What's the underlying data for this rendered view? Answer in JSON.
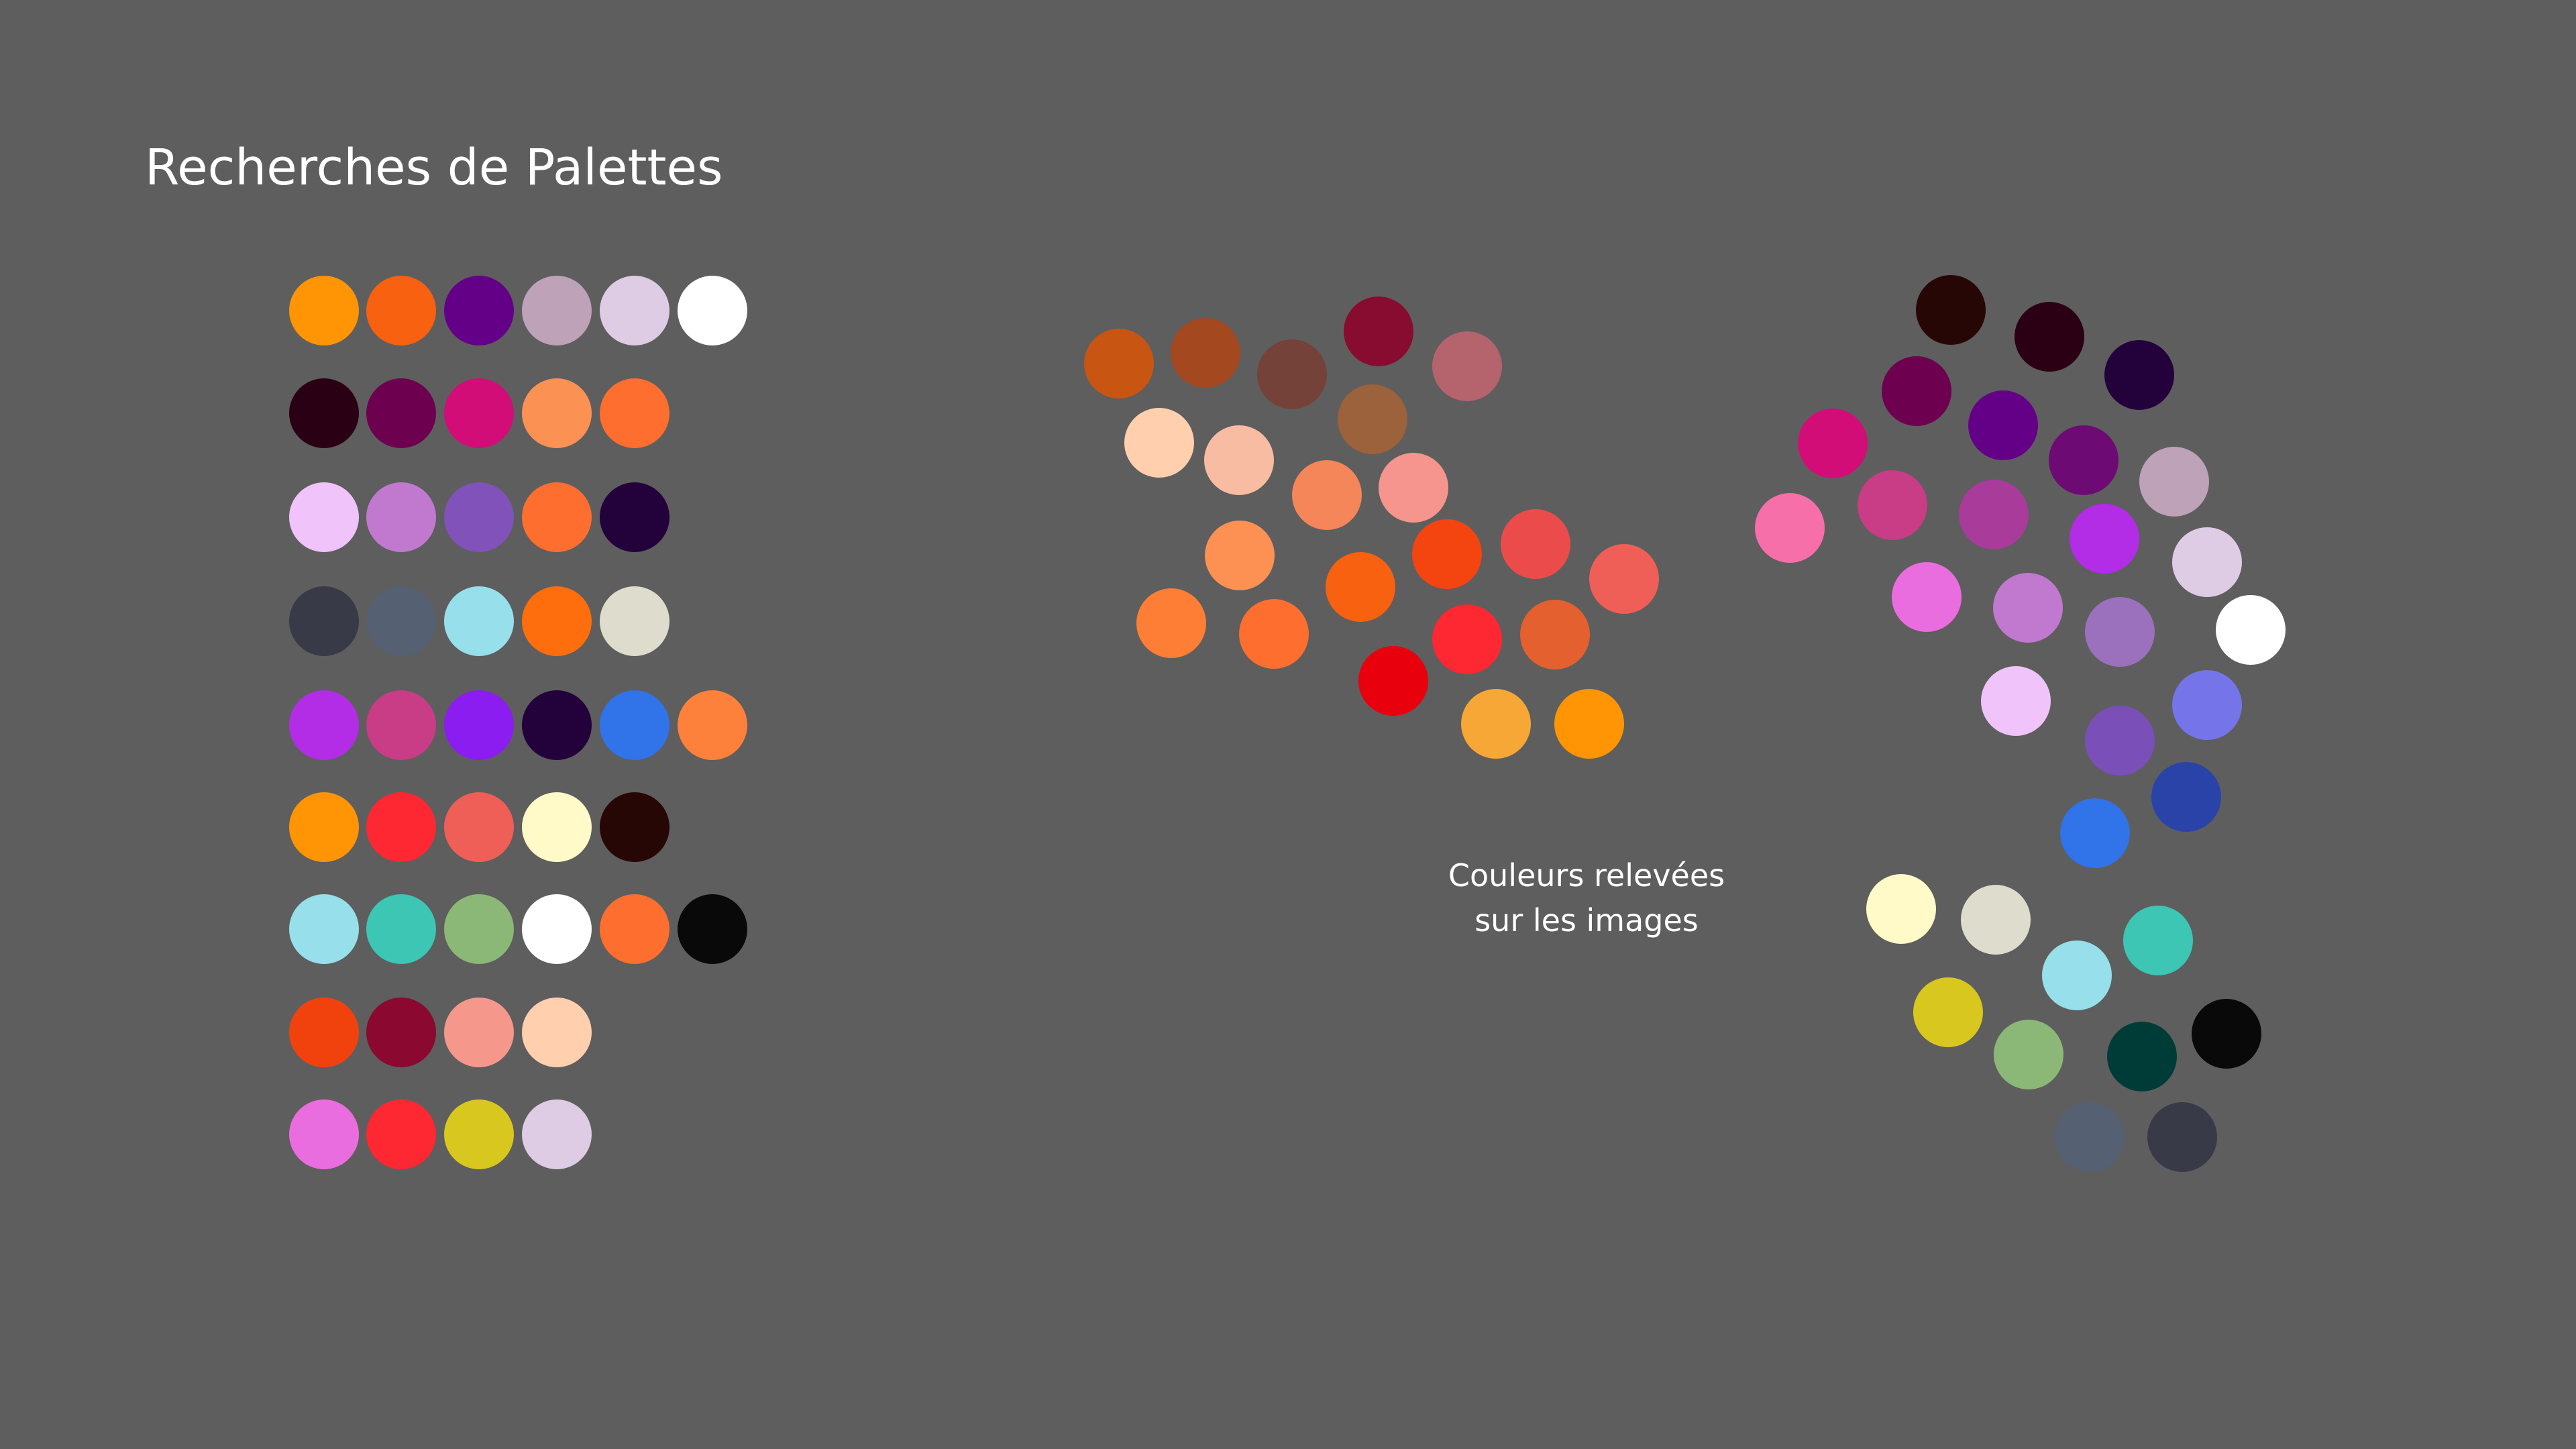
{
  "title": "Recherches de Palettes",
  "caption": {
    "line1": "Couleurs relevées",
    "line2": "sur les images"
  },
  "background_color": "#5e5e5e",
  "palettes": [
    [
      "#ff9505",
      "#f8610f",
      "#640088",
      "#bea2b8",
      "#ddcce3",
      "#ffffff"
    ],
    [
      "#2a0014",
      "#6e0050",
      "#d20d78",
      "#fc9154",
      "#fd6e2f"
    ],
    [
      "#f0c4fa",
      "#c179d0",
      "#8152b9",
      "#fd6e2f",
      "#23023c"
    ],
    [
      "#383a48",
      "#556072",
      "#97e0eb",
      "#ff6e0c",
      "#dedccc"
    ],
    [
      "#b32ce6",
      "#c93c86",
      "#8b1df0",
      "#23023c",
      "#3173e8",
      "#fe813b"
    ],
    [
      "#ff9505",
      "#fd2832",
      "#f05e58",
      "#fffac7",
      "#270705"
    ],
    [
      "#97e0eb",
      "#3cc6b3",
      "#8bb877",
      "#ffffff",
      "#fd6e2f",
      "#090909"
    ],
    [
      "#f1420e",
      "#8b0831",
      "#f5988b",
      "#ffcfae"
    ],
    [
      "#ea6ddf",
      "#fd2832",
      "#d8c71f",
      "#ddcce3"
    ]
  ],
  "photo_colors_warm": [
    "#c95513",
    "#a3481f",
    "#744238",
    "#880c30",
    "#b5636d",
    "#ffcfae",
    "#f8bca3",
    "#9b623b",
    "#f4865a",
    "#f5958d",
    "#fd9154",
    "#f44510",
    "#eb4c4b",
    "#f05e58",
    "#fe7e36",
    "#fd6e2f",
    "#f8610f",
    "#fd2832",
    "#e4602f",
    "#e8000c",
    "#f7a735",
    "#ff9505"
  ],
  "photo_colors_cool": [
    "#270705",
    "#2b0014",
    "#23023c",
    "#6e0050",
    "#640088",
    "#d20d78",
    "#6e0a74",
    "#bea2b8",
    "#f76fa8",
    "#c93c86",
    "#a93b9b",
    "#b32ce6",
    "#ddcce3",
    "#ea6ddf",
    "#c179d0",
    "#9b70bc",
    "#ffffff",
    "#f0c4fa",
    "#7574e8",
    "#7b4fb8",
    "#2a43a8",
    "#3173e8",
    "#fffac7",
    "#dedccc",
    "#97e0eb",
    "#3cc6b3",
    "#d8c71f",
    "#090909",
    "#8bb877",
    "#003c37",
    "#556072",
    "#383a48"
  ]
}
